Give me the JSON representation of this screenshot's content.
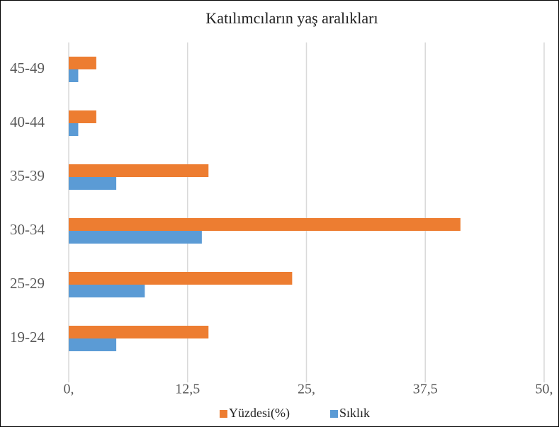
{
  "chart_data": {
    "type": "bar",
    "orientation": "horizontal",
    "title": "Katılımcıların yaş aralıkları",
    "categories": [
      "19-24",
      "25-29",
      "30-34",
      "35-39",
      "40-44",
      "45-49"
    ],
    "series": [
      {
        "name": "Yüzdesi(%)",
        "color": "#ed7d31",
        "values": [
          14.7,
          23.5,
          41.2,
          14.7,
          2.9,
          2.9
        ]
      },
      {
        "name": "Sıklık",
        "color": "#5b9bd5",
        "values": [
          5,
          8,
          14,
          5,
          1,
          1
        ]
      }
    ],
    "xlim": [
      0,
      50
    ],
    "xticks": [
      {
        "value": 0,
        "label": "0,"
      },
      {
        "value": 12.5,
        "label": "12,5"
      },
      {
        "value": 25,
        "label": "25,"
      },
      {
        "value": 37.5,
        "label": "37,5"
      },
      {
        "value": 50,
        "label": "50,"
      }
    ],
    "grid": true,
    "legend": "bottom"
  }
}
